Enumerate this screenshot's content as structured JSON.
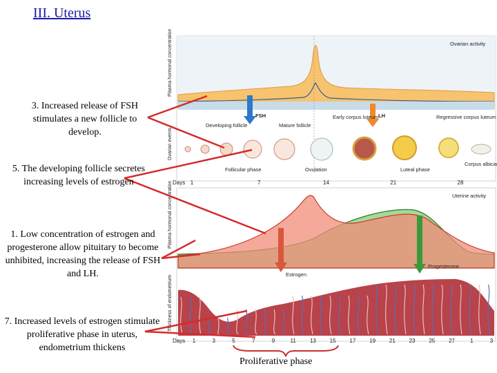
{
  "title": "III. Uterus",
  "notes": {
    "n3": "3. Increased release of FSH stimulates a new follicle to develop.",
    "n5": "5. The developing follicle secretes increasing levels of estrogen",
    "n1": "1. Low concentration of estrogen and progesterone allow pituitary to become unhibited, increasing the release of FSH and LH.",
    "n7": "7. Increased levels of estrogen stimulate proliferative phase in uterus, endometrium thickens"
  },
  "bracket_label": "Proliferative phase",
  "ovarian": {
    "axis_label": "Plasma hormonal concentration",
    "panel_title": "Ovarian activity",
    "fsh": "FSH",
    "lh": "LH",
    "side_label": "Ovarian events",
    "developing_follicle": "Developing follicle",
    "mature_follicle": "Mature follicle",
    "early_corpus_luteum": "Early corpus luteum",
    "regressive_corpus_luteum": "Regressive corpus luteum",
    "follicular_phase": "Follicular phase",
    "ovulation": "Ovulation",
    "luteal_phase": "Luteal phase",
    "corpus_albicans": "Corpus albicans",
    "days_label": "Days",
    "days": [
      "1",
      "7",
      "14",
      "21",
      "28"
    ]
  },
  "uterine": {
    "axis_label": "Plasma hormonal concentration",
    "panel_title": "Uterine activity",
    "estrogen": "Estrogen",
    "progesterone": "Progesterone",
    "side_label": "Thickness of endometrium",
    "days_label": "Days",
    "days": [
      "1",
      "3",
      "5",
      "7",
      "9",
      "11",
      "13",
      "15",
      "17",
      "19",
      "21",
      "23",
      "25",
      "27",
      "1",
      "3"
    ]
  },
  "colors": {
    "fsh_lh_fill": "#f7c36e",
    "blue_band": "#c8dcea",
    "estrogen_fill": "#f08c78",
    "progesterone_fill": "#a6d896",
    "endometrium": "#b8434a",
    "arrow_red": "#d42b2b",
    "fsh_arrow": "#2f78c8",
    "lh_arrow": "#ee8a2a",
    "prog_arrow": "#3a9a3a"
  }
}
